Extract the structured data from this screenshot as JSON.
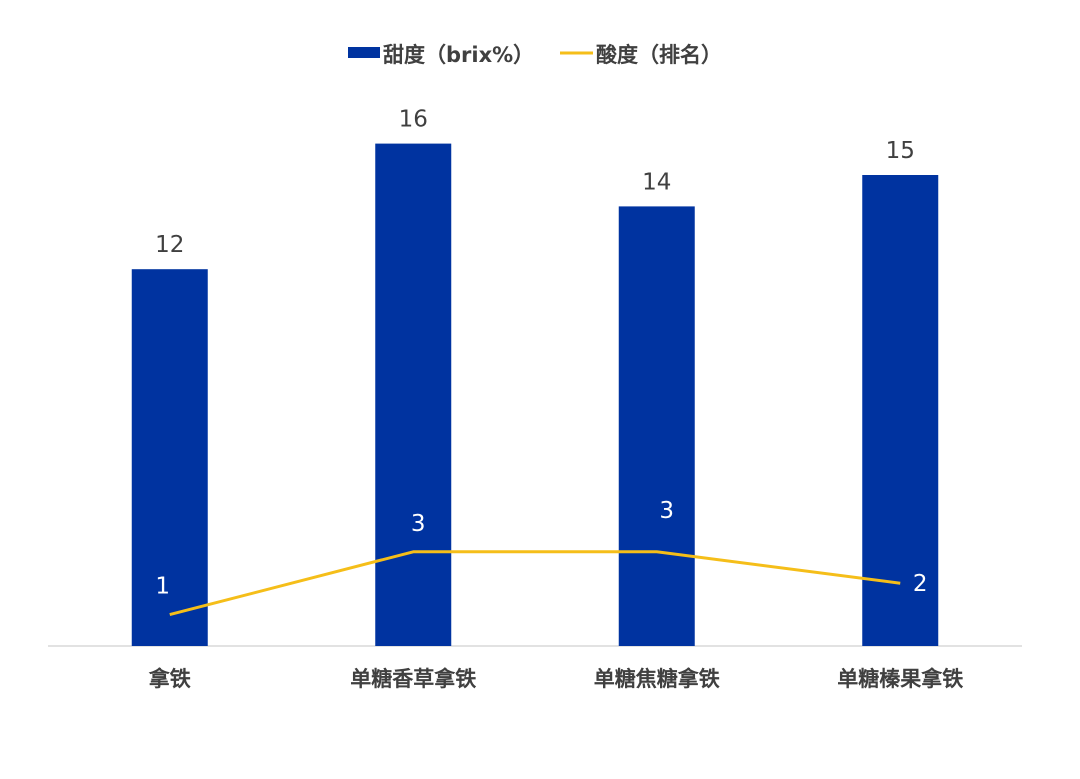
{
  "chart_data": {
    "type": "bar",
    "categories": [
      "拿铁",
      "单糖香草拿铁",
      "单糖焦糖拿铁",
      "单糖榛果拿铁"
    ],
    "series": [
      {
        "name": "甜度（brix%）",
        "type": "bar",
        "values": [
          12,
          16,
          14,
          15
        ],
        "color": "#0033A0"
      },
      {
        "name": "酸度（排名）",
        "type": "line",
        "values": [
          1,
          3,
          3,
          2
        ],
        "color": "#F5BE19"
      }
    ],
    "legend_position": "top-center",
    "grid": false,
    "data_labels": true,
    "colors": {
      "axis": "#D9D9D9",
      "text": "#404040",
      "label_on_bar": "#FFFFFF"
    }
  }
}
